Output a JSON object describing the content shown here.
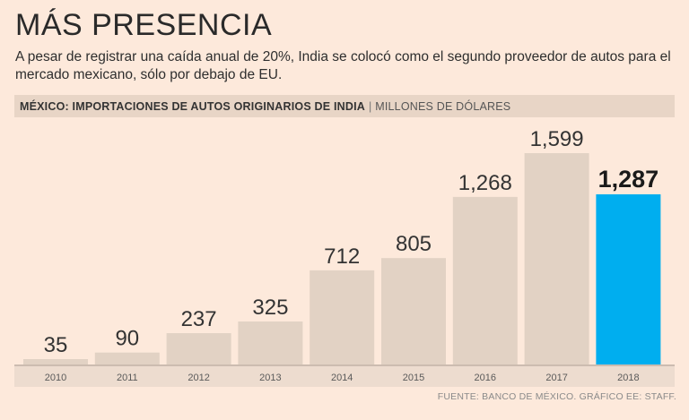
{
  "header": {
    "title": "MÁS PRESENCIA",
    "subtitle": "A pesar de registrar una caída anual de 20%, India se colocó como el segundo proveedor de autos para el mercado mexicano, sólo por debajo de EU."
  },
  "band": {
    "label": "MÉXICO: IMPORTACIONES DE AUTOS ORIGINARIOS DE INDIA",
    "separator": "|",
    "unit": "MILLONES DE DÓLARES"
  },
  "source": "FUENTE: BANCO DE MÉXICO. GRÁFICO EE: STAFF.",
  "colors": {
    "background": "#fde9db",
    "bar": "#e2d2c4",
    "highlight_bar": "#00aeef",
    "tick_band": "#eddccf",
    "axis": "#9a8f86"
  },
  "chart_data": {
    "type": "bar",
    "title": "MÉXICO: IMPORTACIONES DE AUTOS ORIGINARIOS DE INDIA",
    "xlabel": "",
    "ylabel": "MILLONES DE DÓLARES",
    "categories": [
      "2010",
      "2011",
      "2012",
      "2013",
      "2014",
      "2015",
      "2016",
      "2017",
      "2018"
    ],
    "values": [
      35,
      90,
      237,
      325,
      712,
      805,
      1268,
      1599,
      1287
    ],
    "value_labels": [
      "35",
      "90",
      "237",
      "325",
      "712",
      "805",
      "1,268",
      "1,599",
      "1,287"
    ],
    "highlight": "2018",
    "ylim": [
      0,
      1599
    ],
    "grid": false
  }
}
